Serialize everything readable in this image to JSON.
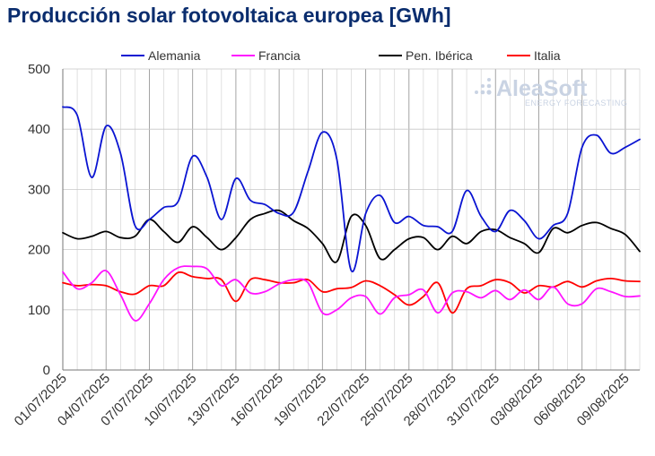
{
  "chart_data": {
    "type": "line",
    "title": "Producción solar fotovoltaica europea [GWh]",
    "xlabel": "",
    "ylabel": "",
    "ylim": [
      0,
      500
    ],
    "yticks": [
      0,
      100,
      200,
      300,
      400,
      500
    ],
    "xtick_labels": [
      "01/07/2025",
      "04/07/2025",
      "07/07/2025",
      "10/07/2025",
      "13/07/2025",
      "16/07/2025",
      "19/07/2025",
      "22/07/2025",
      "25/07/2025",
      "28/07/2025",
      "31/07/2025",
      "03/08/2025",
      "06/08/2025",
      "09/08/2025"
    ],
    "x": [
      "01/07/2025",
      "02/07/2025",
      "03/07/2025",
      "04/07/2025",
      "05/07/2025",
      "06/07/2025",
      "07/07/2025",
      "08/07/2025",
      "09/07/2025",
      "10/07/2025",
      "11/07/2025",
      "12/07/2025",
      "13/07/2025",
      "14/07/2025",
      "15/07/2025",
      "16/07/2025",
      "17/07/2025",
      "18/07/2025",
      "19/07/2025",
      "20/07/2025",
      "21/07/2025",
      "22/07/2025",
      "23/07/2025",
      "24/07/2025",
      "25/07/2025",
      "26/07/2025",
      "27/07/2025",
      "28/07/2025",
      "29/07/2025",
      "30/07/2025",
      "31/07/2025",
      "01/08/2025",
      "02/08/2025",
      "03/08/2025",
      "04/08/2025",
      "05/08/2025",
      "06/08/2025",
      "07/08/2025",
      "08/08/2025",
      "09/08/2025",
      "10/08/2025"
    ],
    "grid": true,
    "legend_position": "top",
    "series": [
      {
        "name": "Alemania",
        "color": "#0a14d2",
        "values": [
          437,
          423,
          320,
          405,
          360,
          240,
          250,
          270,
          280,
          355,
          320,
          250,
          318,
          282,
          275,
          260,
          262,
          330,
          395,
          350,
          165,
          260,
          290,
          245,
          255,
          240,
          238,
          230,
          298,
          255,
          230,
          265,
          248,
          218,
          240,
          260,
          370,
          390,
          360,
          370,
          383
        ]
      },
      {
        "name": "Francia",
        "color": "#ff14ff",
        "values": [
          163,
          135,
          145,
          165,
          125,
          82,
          110,
          150,
          170,
          172,
          168,
          140,
          150,
          128,
          130,
          143,
          150,
          145,
          95,
          100,
          120,
          122,
          93,
          120,
          125,
          133,
          95,
          128,
          130,
          120,
          132,
          117,
          133,
          117,
          138,
          110,
          110,
          135,
          130,
          122,
          123
        ]
      },
      {
        "name": "Pen. Ibérica",
        "color": "#000000",
        "values": [
          228,
          218,
          222,
          230,
          220,
          222,
          250,
          230,
          212,
          238,
          220,
          200,
          220,
          250,
          260,
          265,
          248,
          235,
          210,
          180,
          255,
          240,
          185,
          200,
          218,
          220,
          200,
          222,
          210,
          230,
          233,
          220,
          210,
          195,
          235,
          228,
          240,
          245,
          235,
          225,
          197
        ]
      },
      {
        "name": "Italia",
        "color": "#ff0000",
        "values": [
          145,
          140,
          142,
          140,
          130,
          126,
          140,
          140,
          162,
          155,
          152,
          150,
          114,
          150,
          150,
          145,
          145,
          150,
          130,
          135,
          137,
          148,
          140,
          125,
          108,
          122,
          145,
          95,
          135,
          140,
          150,
          145,
          128,
          140,
          138,
          147,
          138,
          148,
          152,
          148,
          147
        ]
      }
    ]
  },
  "watermark": {
    "brand": "AleaSoft",
    "tagline": "ENERGY FORECASTING"
  }
}
